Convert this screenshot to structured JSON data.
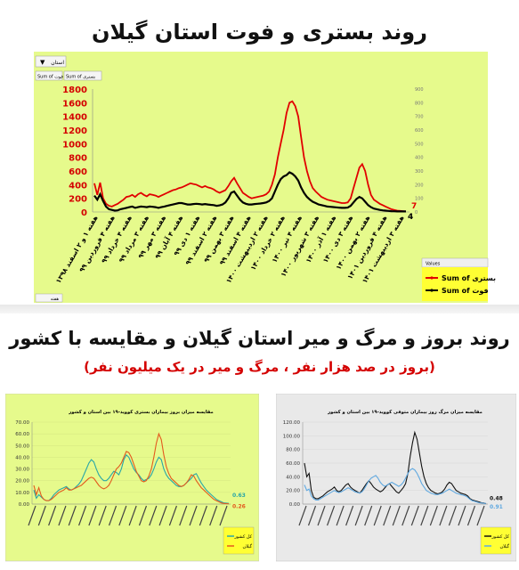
{
  "top": {
    "title": "روند بستری و فوت استان گیلان",
    "filter_label": "استان",
    "header_left": "Sum of فوت",
    "header_right": "Sum of بستری",
    "values_label": "Values",
    "legend": [
      "Sum of بستری",
      "Sum of فوت"
    ],
    "footer_label": "هفته",
    "end_label_1": "7",
    "end_label_2": "4",
    "colors": {
      "bg": "#e6fa8c",
      "legend_bg": "#ffff33",
      "series1": "#e10000",
      "series2": "#000000"
    }
  },
  "bottom": {
    "title": "روند بروز و مرگ و میر استان گیلان و مقایسه با کشور",
    "subtitle": "(بروز در صد هزار نفر ، مرگ و میر در یک میلیون نفر)",
    "left_panel": {
      "title": "مقایسه میزان بروز بیماران بستری کووید-۱۹ بین استان و کشور",
      "legend": [
        "کل کشور",
        "گیلان"
      ],
      "end_labels": [
        "0.63",
        "0.26"
      ],
      "colors": {
        "bg": "#e6fa8c",
        "country": "#2aa7a7",
        "province": "#e35a1e",
        "legend_bg": "#ffff33"
      }
    },
    "right_panel": {
      "title": "مقایسه میزان مرگ روز بیماران متوفی کووید-۱۹ بین استان و کشور",
      "legend": [
        "کل کشور",
        "گیلان"
      ],
      "end_labels": [
        "0.48",
        "0.91"
      ],
      "colors": {
        "bg": "#e9e9e9",
        "country": "#111111",
        "province": "#5fa8e0",
        "legend_bg": "#ffff33"
      }
    }
  },
  "chart_data": [
    {
      "type": "line",
      "title": "روند بستری و فوت استان گیلان",
      "ylim": [
        0,
        1800
      ],
      "yticks": [
        0,
        200,
        400,
        600,
        800,
        1000,
        1200,
        1400,
        1600,
        1800
      ],
      "y2lim": [
        0,
        900
      ],
      "y2ticks": [
        0,
        100,
        200,
        300,
        400,
        500,
        600,
        700,
        800,
        900
      ],
      "x_tick_labels": [
        "هفته ۱ و ۲ اسفند ۱۳۹۸",
        "هفته ۴ فروردین ۹۹",
        "هفته ۴ خرداد ۹۹",
        "هفته ۳ مرداد ۹۹",
        "هفته ۳ مهر ۹۹",
        "هفته ۴ آبان ۹۹",
        "هفته ۱ دی ۹۹",
        "هفته ۲ اسفند ۹۹",
        "هفته ۳ بهمن ۹۹",
        "هفته ۴ اسفند ۹۹",
        "هفته ۲ اردیبهشت ۱۴۰۰",
        "هفته ۲ خرداد ۱۴۰۰",
        "هفته ۴ تیر ۱۴۰۰",
        "هفته ۳ شهریور ۱۴۰۰",
        "هفته ۱ آذر ۱۴۰۰",
        "هفته ۳ دی ۱۴۰۰",
        "هفته ۲ بهمن ۱۴۰۰",
        "هفته ۴ فروردین ۱۴۰۱",
        "هفته ۳ اردیبهشت ۱۴۰۱"
      ],
      "series": [
        {
          "name": "Sum of بستری",
          "axis": "left",
          "values": [
            420,
            250,
            430,
            200,
            120,
            90,
            80,
            100,
            120,
            150,
            180,
            220,
            230,
            250,
            220,
            260,
            280,
            250,
            230,
            260,
            250,
            240,
            220,
            240,
            260,
            280,
            300,
            320,
            330,
            350,
            360,
            380,
            400,
            420,
            410,
            400,
            380,
            360,
            380,
            360,
            350,
            330,
            300,
            280,
            300,
            320,
            380,
            450,
            500,
            420,
            350,
            280,
            250,
            220,
            200,
            210,
            220,
            230,
            240,
            260,
            300,
            400,
            550,
            800,
            1000,
            1200,
            1450,
            1600,
            1620,
            1550,
            1400,
            1100,
            800,
            600,
            450,
            350,
            300,
            260,
            220,
            200,
            180,
            170,
            160,
            150,
            140,
            130,
            130,
            140,
            200,
            350,
            500,
            650,
            700,
            600,
            400,
            250,
            180,
            150,
            120,
            100,
            80,
            60,
            40,
            30,
            20,
            15,
            10,
            7
          ]
        },
        {
          "name": "Sum of فوت",
          "axis": "right",
          "values": [
            120,
            90,
            130,
            80,
            40,
            20,
            15,
            10,
            12,
            20,
            25,
            30,
            35,
            40,
            30,
            35,
            40,
            38,
            35,
            40,
            38,
            35,
            30,
            35,
            40,
            45,
            50,
            55,
            60,
            65,
            65,
            60,
            55,
            55,
            58,
            60,
            58,
            55,
            58,
            55,
            52,
            50,
            45,
            48,
            55,
            70,
            100,
            140,
            150,
            120,
            90,
            70,
            60,
            55,
            55,
            58,
            60,
            62,
            65,
            70,
            80,
            100,
            150,
            200,
            240,
            260,
            270,
            290,
            280,
            260,
            230,
            180,
            140,
            110,
            90,
            75,
            65,
            55,
            50,
            45,
            40,
            38,
            36,
            34,
            32,
            30,
            30,
            32,
            45,
            70,
            95,
            110,
            100,
            75,
            50,
            35,
            25,
            20,
            15,
            12,
            10,
            8,
            6,
            5,
            4,
            4,
            4,
            4
          ]
        }
      ]
    },
    {
      "type": "line",
      "title": "مقایسه میزان بروز بیماران بستری کووید-۱۹ بین استان و کشور",
      "ylim": [
        0,
        70
      ],
      "yticks": [
        0,
        10,
        20,
        30,
        40,
        50,
        60,
        70
      ],
      "series": [
        {
          "name": "کل کشور",
          "values": [
            12,
            5,
            8,
            6,
            4,
            3,
            3,
            5,
            8,
            10,
            12,
            13,
            14,
            15,
            13,
            12,
            13,
            15,
            17,
            20,
            25,
            30,
            35,
            38,
            36,
            30,
            25,
            22,
            20,
            20,
            22,
            25,
            28,
            27,
            25,
            30,
            38,
            42,
            40,
            35,
            30,
            27,
            25,
            22,
            20,
            21,
            22,
            25,
            30,
            36,
            40,
            38,
            30,
            25,
            22,
            20,
            18,
            16,
            15,
            15,
            16,
            18,
            20,
            22,
            25,
            26,
            22,
            18,
            15,
            12,
            10,
            8,
            6,
            4,
            3,
            2,
            1,
            0.8,
            0.63
          ]
        },
        {
          "name": "گیلان",
          "values": [
            16,
            8,
            14,
            7,
            4,
            3,
            3,
            4,
            6,
            8,
            10,
            11,
            12,
            14,
            12,
            12,
            13,
            14,
            15,
            16,
            18,
            20,
            22,
            23,
            22,
            19,
            16,
            14,
            13,
            14,
            16,
            20,
            25,
            30,
            32,
            35,
            40,
            45,
            44,
            40,
            34,
            28,
            24,
            20,
            19,
            20,
            24,
            30,
            40,
            52,
            60,
            55,
            42,
            32,
            26,
            22,
            20,
            18,
            16,
            15,
            16,
            18,
            21,
            25,
            24,
            20,
            17,
            14,
            12,
            10,
            8,
            6,
            4,
            3,
            2,
            1,
            0.5,
            0.4,
            0.26
          ]
        }
      ]
    },
    {
      "type": "line",
      "title": "مقایسه میزان مرگ روز بیماران متوفی کووید-۱۹ بین استان و کشور",
      "ylim": [
        0,
        120
      ],
      "yticks": [
        0,
        20,
        40,
        60,
        80,
        100,
        120
      ],
      "series": [
        {
          "name": "کل کشور",
          "values": [
            60,
            40,
            45,
            20,
            10,
            8,
            8,
            10,
            12,
            15,
            18,
            20,
            22,
            25,
            20,
            18,
            20,
            24,
            28,
            30,
            25,
            22,
            20,
            18,
            16,
            20,
            25,
            30,
            34,
            30,
            25,
            22,
            20,
            18,
            20,
            24,
            28,
            30,
            26,
            22,
            18,
            16,
            20,
            24,
            30,
            45,
            70,
            90,
            105,
            95,
            75,
            55,
            40,
            30,
            24,
            20,
            18,
            16,
            15,
            16,
            18,
            22,
            28,
            32,
            30,
            25,
            20,
            18,
            16,
            15,
            14,
            12,
            8,
            6,
            5,
            4,
            3,
            2,
            1.5,
            0.48
          ]
        },
        {
          "name": "گیلان",
          "values": [
            28,
            20,
            22,
            12,
            8,
            6,
            6,
            8,
            10,
            12,
            14,
            16,
            18,
            20,
            18,
            17,
            18,
            20,
            22,
            24,
            22,
            20,
            18,
            17,
            16,
            18,
            22,
            28,
            34,
            38,
            40,
            42,
            38,
            32,
            28,
            26,
            28,
            30,
            32,
            30,
            28,
            26,
            28,
            32,
            38,
            45,
            50,
            52,
            50,
            45,
            38,
            30,
            25,
            20,
            18,
            16,
            15,
            14,
            14,
            15,
            16,
            18,
            20,
            22,
            20,
            18,
            16,
            15,
            14,
            13,
            12,
            10,
            7,
            5,
            4,
            3,
            2,
            1.5,
            1.2,
            0.91
          ]
        }
      ]
    }
  ]
}
